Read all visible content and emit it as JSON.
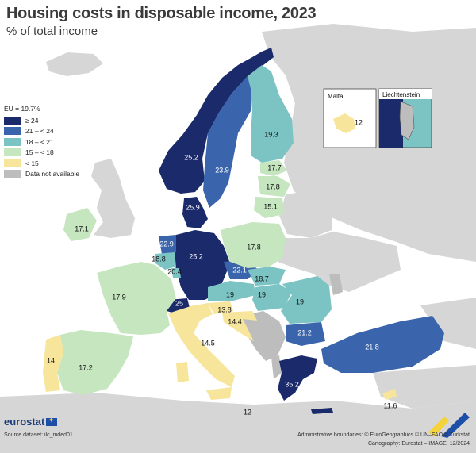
{
  "title": "Housing costs in disposable income, 2023",
  "subtitle": "% of total income",
  "legend": {
    "header": "EU = 19.7%",
    "items": [
      {
        "label": "≥ 24",
        "color": "#1b2a6b"
      },
      {
        "label": "21 – < 24",
        "color": "#3a64ab"
      },
      {
        "label": "18 – < 21",
        "color": "#7cc3c4"
      },
      {
        "label": "15 – < 18",
        "color": "#c5e6bf"
      },
      {
        "label": "< 15",
        "color": "#f6e59a"
      },
      {
        "label": "Data not available",
        "color": "#bdbdbd"
      }
    ]
  },
  "countries": [
    {
      "name": "Norway",
      "value": "25.2"
    },
    {
      "name": "Sweden",
      "value": "23.9"
    },
    {
      "name": "Finland",
      "value": "19.3"
    },
    {
      "name": "Estonia",
      "value": "17.7"
    },
    {
      "name": "Latvia",
      "value": "17.8"
    },
    {
      "name": "Lithuania",
      "value": "15.1"
    },
    {
      "name": "Denmark",
      "value": "25.9"
    },
    {
      "name": "Ireland",
      "value": "17.1"
    },
    {
      "name": "Netherlands",
      "value": "22.9"
    },
    {
      "name": "Belgium",
      "value": "18.8"
    },
    {
      "name": "Luxembourg",
      "value": "20.4"
    },
    {
      "name": "Germany",
      "value": "25.2"
    },
    {
      "name": "Poland",
      "value": "17.8"
    },
    {
      "name": "Czechia",
      "value": "22.1"
    },
    {
      "name": "Slovakia",
      "value": "18.7"
    },
    {
      "name": "France",
      "value": "17.9"
    },
    {
      "name": "Switzerland",
      "value": "25"
    },
    {
      "name": "Austria",
      "value": "19"
    },
    {
      "name": "Hungary",
      "value": "19"
    },
    {
      "name": "Romania",
      "value": "19"
    },
    {
      "name": "Slovenia",
      "value": "13.8"
    },
    {
      "name": "Croatia",
      "value": "14.4"
    },
    {
      "name": "Italy",
      "value": "14.5"
    },
    {
      "name": "Portugal",
      "value": "14"
    },
    {
      "name": "Spain",
      "value": "17.2"
    },
    {
      "name": "Bulgaria",
      "value": "21.2"
    },
    {
      "name": "Türkiye",
      "value": "21.8"
    },
    {
      "name": "Greece",
      "value": "35.2"
    },
    {
      "name": "Malta",
      "value": "12"
    },
    {
      "name": "Cyprus",
      "value": "11.6"
    }
  ],
  "insets": {
    "malta": {
      "title": "Malta",
      "value": "12"
    },
    "liechtenstein": {
      "title": "Liechtenstein"
    }
  },
  "brand": "eurostat",
  "footer": {
    "source": "Source dataset: ilc_mded01",
    "boundaries": "Administrative boundaries: © EuroGeographics © UN–FAO © Turkstat",
    "cartography": "Cartography: Eurostat – IMAGE, 12/2024"
  }
}
